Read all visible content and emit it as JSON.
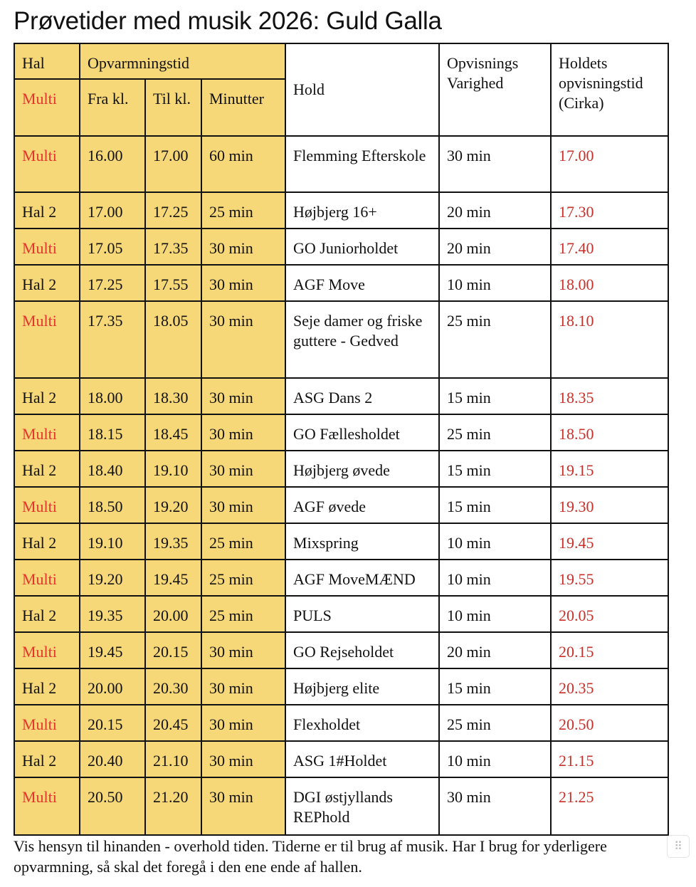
{
  "title": "Prøvetider med musik 2026: Guld Galla",
  "header": {
    "hal": "Hal",
    "opvarmningstid": "Opvarmningstid",
    "multi": "Multi",
    "fra": "Fra kl.",
    "til": "Til kl.",
    "minutter": "Minutter",
    "hold": "Hold",
    "varighed": "Opvisnings Varighed",
    "opvisningstid": "Holdets opvisningstid (Cirka)"
  },
  "rows": [
    {
      "hal": "Multi",
      "fra": "16.00",
      "til": "17.00",
      "min": "60 min",
      "hold": "Flemming Efterskole",
      "varighed": "30 min",
      "tid": "17.00"
    },
    {
      "hal": "Hal 2",
      "fra": "17.00",
      "til": "17.25",
      "min": "25 min",
      "hold": "Højbjerg 16+",
      "varighed": "20 min",
      "tid": "17.30"
    },
    {
      "hal": "Multi",
      "fra": "17.05",
      "til": "17.35",
      "min": "30 min",
      "hold": "GO Juniorholdet",
      "varighed": "20 min",
      "tid": "17.40"
    },
    {
      "hal": "Hal 2",
      "fra": "17.25",
      "til": "17.55",
      "min": "30 min",
      "hold": "AGF Move",
      "varighed": "10 min",
      "tid": "18.00"
    },
    {
      "hal": "Multi",
      "fra": "17.35",
      "til": "18.05",
      "min": "30 min",
      "hold": "Seje damer og friske guttere - Gedved",
      "varighed": "25 min",
      "tid": "18.10"
    },
    {
      "hal": "Hal 2",
      "fra": "18.00",
      "til": "18.30",
      "min": "30 min",
      "hold": "ASG Dans 2",
      "varighed": "15 min",
      "tid": "18.35"
    },
    {
      "hal": "Multi",
      "fra": "18.15",
      "til": "18.45",
      "min": "30 min",
      "hold": "GO Fællesholdet",
      "varighed": "25 min",
      "tid": "18.50"
    },
    {
      "hal": "Hal 2",
      "fra": "18.40",
      "til": "19.10",
      "min": "30 min",
      "hold": "Højbjerg øvede",
      "varighed": "15 min",
      "tid": "19.15"
    },
    {
      "hal": "Multi",
      "fra": "18.50",
      "til": "19.20",
      "min": "30 min",
      "hold": "AGF øvede",
      "varighed": "15 min",
      "tid": "19.30"
    },
    {
      "hal": "Hal 2",
      "fra": "19.10",
      "til": "19.35",
      "min": "25 min",
      "hold": "Mixspring",
      "varighed": "10 min",
      "tid": "19.45"
    },
    {
      "hal": "Multi",
      "fra": "19.20",
      "til": "19.45",
      "min": "25 min",
      "hold": "AGF MoveMÆND",
      "varighed": "10 min",
      "tid": "19.55"
    },
    {
      "hal": "Hal 2",
      "fra": "19.35",
      "til": "20.00",
      "min": "25 min",
      "hold": "PULS",
      "varighed": "10 min",
      "tid": "20.05"
    },
    {
      "hal": "Multi",
      "fra": "19.45",
      "til": "20.15",
      "min": "30 min",
      "hold": "GO Rejseholdet",
      "varighed": "20 min",
      "tid": "20.15"
    },
    {
      "hal": "Hal 2",
      "fra": "20.00",
      "til": "20.30",
      "min": "30 min",
      "hold": "Højbjerg elite",
      "varighed": "15 min",
      "tid": "20.35"
    },
    {
      "hal": "Multi",
      "fra": "20.15",
      "til": "20.45",
      "min": "30 min",
      "hold": "Flexholdet",
      "varighed": "25 min",
      "tid": "20.50"
    },
    {
      "hal": "Hal 2",
      "fra": "20.40",
      "til": "21.10",
      "min": "30 min",
      "hold": "ASG 1#Holdet",
      "varighed": "10 min",
      "tid": "21.15"
    },
    {
      "hal": "Multi",
      "fra": "20.50",
      "til": "21.20",
      "min": "30 min",
      "hold": "DGI østjyllands REPhold",
      "varighed": "30 min",
      "tid": "21.25"
    }
  ],
  "note": "Vis hensyn til hinanden - overhold tiden. Tiderne er til brug af musik. Har I brug for yderligere opvarmning, så skal det foregå i den ene ende af hallen.",
  "colors": {
    "highlight": "#f6d879",
    "multi": "#e3362b",
    "time": "#c8302a"
  },
  "handle_icon": "drag-handle-icon"
}
